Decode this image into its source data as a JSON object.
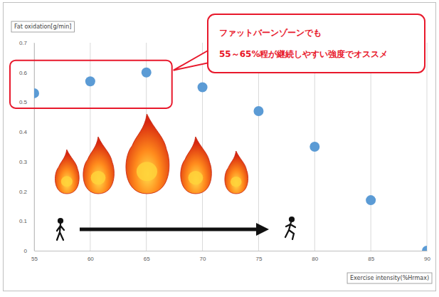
{
  "chart_data": {
    "type": "scatter",
    "y_label": "Fat oxidation[g/min]",
    "x_label": "Exercise intensity(%Hrmax)",
    "annotation": [
      "ファットバーンゾーンでも",
      "55～65%程が継続しやすい強度でオススメ"
    ],
    "x": [
      55,
      60,
      65,
      70,
      75,
      80,
      85,
      90
    ],
    "values": [
      0.53,
      0.57,
      0.6,
      0.55,
      0.47,
      0.35,
      0.17,
      0.0
    ],
    "color": "#5b9bd5",
    "marker": "circle",
    "xlim": [
      55,
      90
    ],
    "xticks": [
      55,
      60,
      65,
      70,
      75,
      80,
      85,
      90
    ],
    "ylim": [
      0,
      0.7
    ],
    "yticks": [
      0,
      0.1,
      0.2,
      0.3,
      0.4,
      0.5,
      0.6,
      0.7
    ],
    "grid": true
  }
}
